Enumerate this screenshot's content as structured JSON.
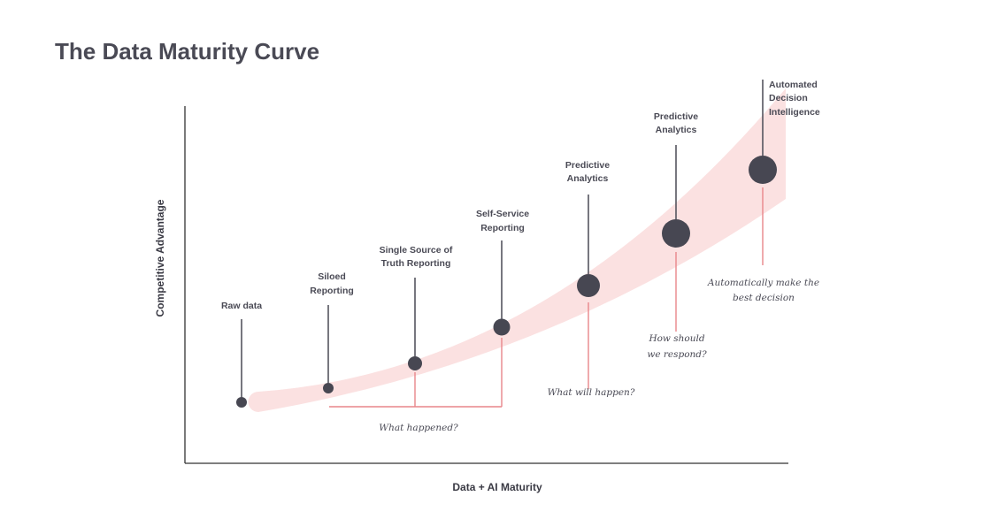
{
  "title": "The Data Maturity Curve",
  "x_axis_label": "Data + AI Maturity",
  "y_axis_label": "Competitive Advantage",
  "colors": {
    "dot": "#474752",
    "stem": "#55555f",
    "annotation_line": "#e8868a",
    "band": "#fbe1e1",
    "text": "#4a4a55"
  },
  "stages": [
    {
      "label": [
        "Raw data"
      ]
    },
    {
      "label": [
        "Siloed",
        "Reporting"
      ]
    },
    {
      "label": [
        "Single Source of",
        "Truth Reporting"
      ]
    },
    {
      "label": [
        "Self-Service",
        "Reporting"
      ]
    },
    {
      "label": [
        "Predictive",
        "Analytics"
      ]
    },
    {
      "label": [
        "Predictive",
        "Analytics"
      ]
    },
    {
      "label": [
        "Automated",
        "Decision",
        "Intelligence"
      ]
    }
  ],
  "annotations": [
    {
      "text": [
        "What happened?"
      ]
    },
    {
      "text": [
        "What will happen?"
      ]
    },
    {
      "text": [
        "How should",
        "we respond?"
      ]
    },
    {
      "text": [
        "Automatically make the",
        "best decision"
      ]
    }
  ]
}
